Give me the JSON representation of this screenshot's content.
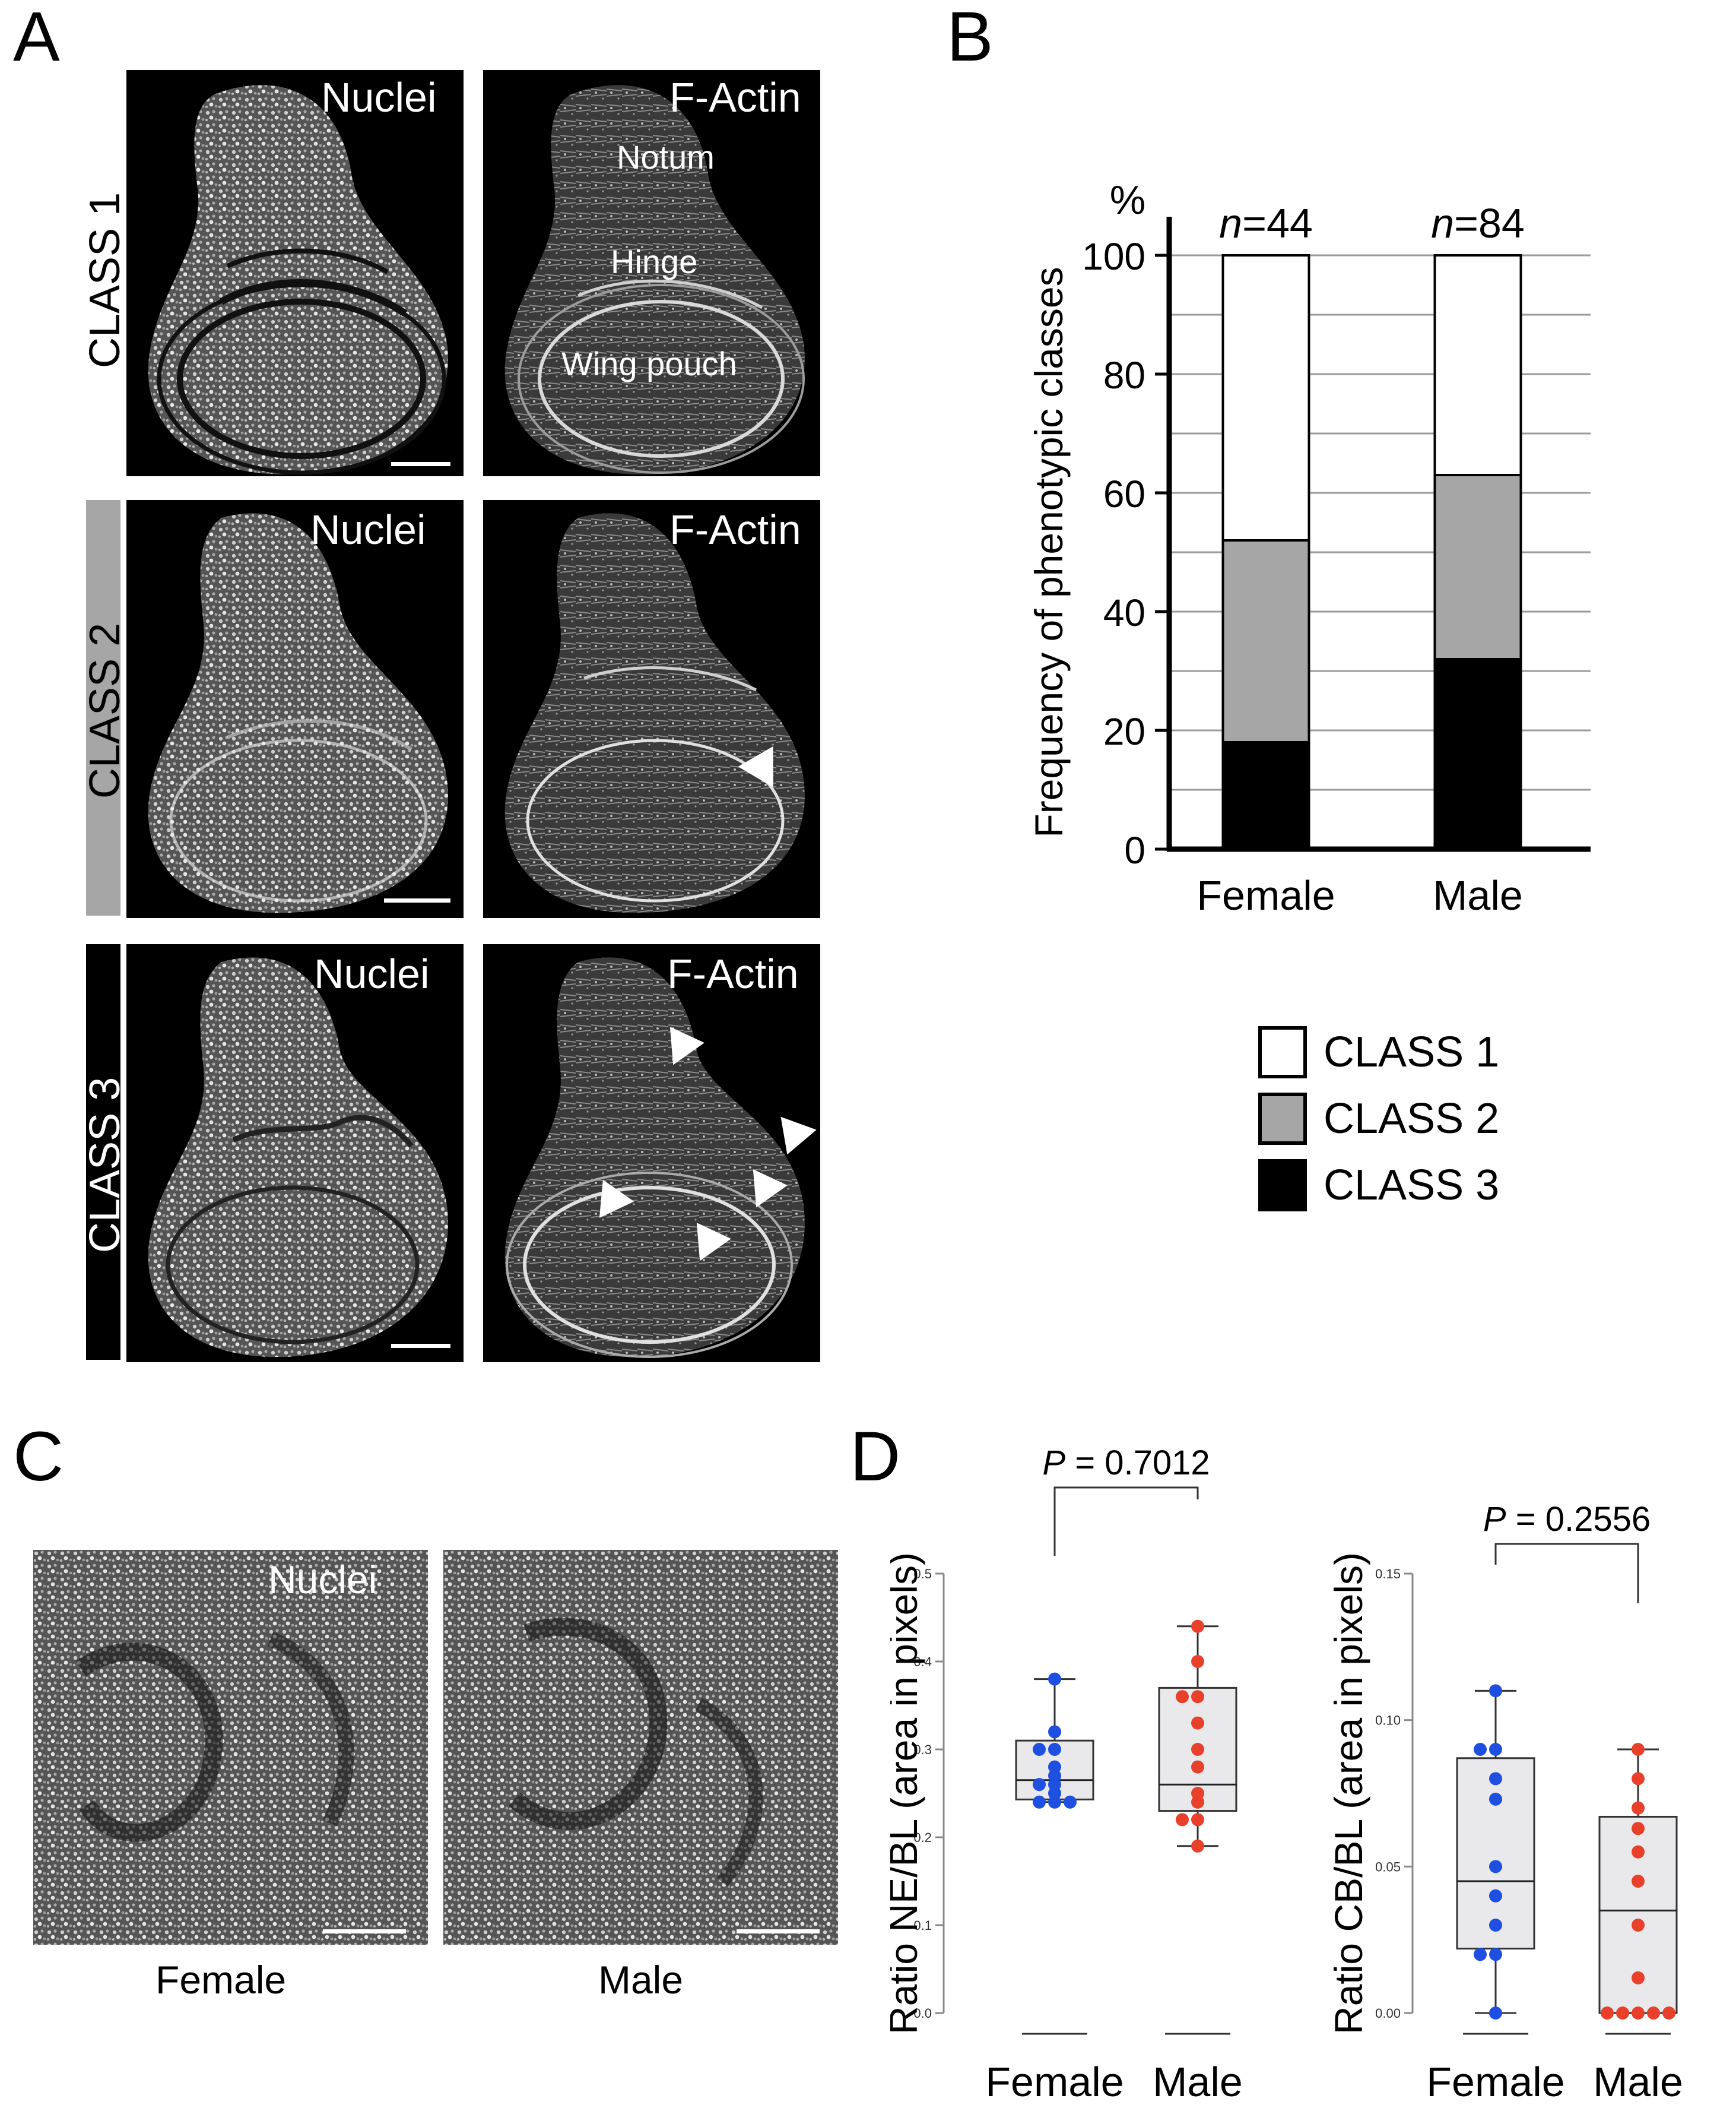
{
  "panel_letters": {
    "a": "A",
    "b": "B",
    "c": "C",
    "d": "D"
  },
  "panel_a": {
    "rows": [
      {
        "class_label": "CLASS 1",
        "bar_color": "#ffffff",
        "text_color": "#000000",
        "left_label": "Nuclei",
        "right_label": "F-Actin",
        "regions": {
          "notum": "Notum",
          "hinge": "Hinge",
          "pouch": "Wing pouch"
        }
      },
      {
        "class_label": "CLASS 2",
        "bar_color": "#a6a6a6",
        "text_color": "#000000",
        "left_label": "Nuclei",
        "right_label": "F-Actin"
      },
      {
        "class_label": "CLASS 3",
        "bar_color": "#000000",
        "text_color": "#ffffff",
        "left_label": "Nuclei",
        "right_label": "F-Actin"
      }
    ],
    "arrowheads_icon": "white-triangle-arrowhead"
  },
  "panel_c": {
    "image_label": "Nuclei",
    "captions": [
      "Female",
      "Male"
    ]
  },
  "legend": [
    {
      "label": "CLASS 1",
      "color": "#ffffff"
    },
    {
      "label": "CLASS 2",
      "color": "#a6a6a6"
    },
    {
      "label": "CLASS 3",
      "color": "#000000"
    }
  ],
  "chart_data": [
    {
      "type": "bar",
      "stacked": true,
      "ylabel": "Frequency of phenotypic classes",
      "yunit": "%",
      "ylim": [
        0,
        100
      ],
      "yticks": [
        0,
        20,
        40,
        60,
        80,
        100
      ],
      "grid": true,
      "categories": [
        "Female",
        "Male"
      ],
      "annotations": [
        {
          "prefix": "n",
          "text": "=44"
        },
        {
          "prefix": "n",
          "text": "=84"
        }
      ],
      "series": [
        {
          "name": "CLASS 3",
          "color": "#000000",
          "values": [
            18,
            32
          ]
        },
        {
          "name": "CLASS 2",
          "color": "#a6a6a6",
          "values": [
            34,
            31
          ]
        },
        {
          "name": "CLASS 1",
          "color": "#ffffff",
          "values": [
            48,
            37
          ]
        }
      ]
    },
    {
      "type": "box",
      "ylabel": "Ratio NE/BL (area in pixels)",
      "ylim": [
        0,
        0.5
      ],
      "yticks": [
        "0.0",
        "0.1",
        "0.2",
        "0.3",
        "0.4",
        "0.5"
      ],
      "categories": [
        "Female",
        "Male"
      ],
      "pvalue": {
        "label": "P",
        "text": " = 0.7012"
      },
      "box": [
        {
          "min": 0.24,
          "q1": 0.243,
          "median": 0.265,
          "q3": 0.31,
          "max": 0.38
        },
        {
          "min": 0.19,
          "q1": 0.23,
          "median": 0.26,
          "q3": 0.37,
          "max": 0.44
        }
      ],
      "series": [
        {
          "color": "#1f4fe0",
          "values": [
            0.38,
            0.32,
            0.3,
            0.3,
            0.28,
            0.27,
            0.26,
            0.26,
            0.25,
            0.24,
            0.24,
            0.24
          ]
        },
        {
          "color": "#e8402a",
          "values": [
            0.44,
            0.4,
            0.36,
            0.36,
            0.33,
            0.3,
            0.28,
            0.25,
            0.24,
            0.22,
            0.22,
            0.19
          ]
        }
      ]
    },
    {
      "type": "box",
      "ylabel": "Ratio CB/BL (area in pixels)",
      "ylim": [
        0,
        0.15
      ],
      "yticks": [
        "0.00",
        "0.05",
        "0.10",
        "0.15"
      ],
      "categories": [
        "Female",
        "Male"
      ],
      "pvalue": {
        "label": "P",
        "text": " = 0.2556"
      },
      "box": [
        {
          "min": 0.0,
          "q1": 0.022,
          "median": 0.045,
          "q3": 0.087,
          "max": 0.11
        },
        {
          "min": 0.0,
          "q1": 0.0,
          "median": 0.035,
          "q3": 0.067,
          "max": 0.09
        }
      ],
      "series": [
        {
          "color": "#1f4fe0",
          "values": [
            0.11,
            0.09,
            0.09,
            0.08,
            0.073,
            0.05,
            0.04,
            0.03,
            0.02,
            0.02,
            0.0
          ]
        },
        {
          "color": "#e8402a",
          "values": [
            0.09,
            0.08,
            0.07,
            0.063,
            0.055,
            0.045,
            0.03,
            0.012,
            0.0,
            0.0,
            0.0,
            0.0,
            0.0
          ]
        }
      ]
    }
  ]
}
